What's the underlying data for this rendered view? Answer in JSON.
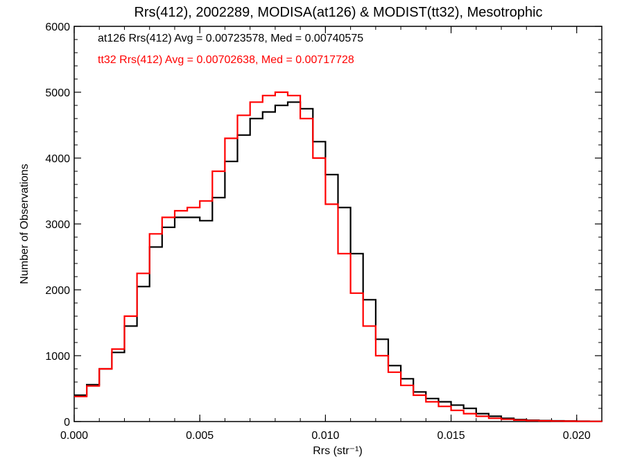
{
  "chart_data": {
    "type": "line",
    "title": "Rrs(412), 2002289, MODISA(at126) & MODIST(tt32), Mesotrophic",
    "xlabel": "Rrs (str⁻¹)",
    "ylabel": "Number of Observations",
    "xlim": [
      0.0,
      0.021
    ],
    "ylim": [
      0,
      6000
    ],
    "x_ticks": [
      0.0,
      0.005,
      0.01,
      0.015,
      0.02
    ],
    "x_tick_labels": [
      "0.000",
      "0.005",
      "0.010",
      "0.015",
      "0.020"
    ],
    "y_ticks": [
      0,
      1000,
      2000,
      3000,
      4000,
      5000,
      6000
    ],
    "y_tick_labels": [
      "0",
      "1000",
      "2000",
      "3000",
      "4000",
      "5000",
      "6000"
    ],
    "grid": false,
    "legend_position": "top-left",
    "series": [
      {
        "name": "at126 Rrs(412) Avg = 0.00723578, Med = 0.00740575",
        "color": "#000000",
        "points": [
          [
            0.0,
            400
          ],
          [
            0.0005,
            560
          ],
          [
            0.001,
            800
          ],
          [
            0.0015,
            1050
          ],
          [
            0.002,
            1450
          ],
          [
            0.0025,
            2050
          ],
          [
            0.003,
            2650
          ],
          [
            0.0035,
            2950
          ],
          [
            0.004,
            3100
          ],
          [
            0.0045,
            3100
          ],
          [
            0.005,
            3050
          ],
          [
            0.0055,
            3400
          ],
          [
            0.006,
            3950
          ],
          [
            0.0065,
            4350
          ],
          [
            0.007,
            4600
          ],
          [
            0.0075,
            4700
          ],
          [
            0.008,
            4800
          ],
          [
            0.0085,
            4850
          ],
          [
            0.009,
            4750
          ],
          [
            0.0095,
            4250
          ],
          [
            0.01,
            3750
          ],
          [
            0.0105,
            3250
          ],
          [
            0.011,
            2550
          ],
          [
            0.0115,
            1850
          ],
          [
            0.012,
            1250
          ],
          [
            0.0125,
            850
          ],
          [
            0.013,
            650
          ],
          [
            0.0135,
            450
          ],
          [
            0.014,
            350
          ],
          [
            0.0145,
            300
          ],
          [
            0.015,
            250
          ],
          [
            0.0155,
            200
          ],
          [
            0.016,
            120
          ],
          [
            0.0165,
            80
          ],
          [
            0.017,
            50
          ],
          [
            0.0175,
            30
          ],
          [
            0.018,
            20
          ],
          [
            0.0185,
            15
          ],
          [
            0.019,
            10
          ],
          [
            0.0195,
            8
          ],
          [
            0.02,
            5
          ],
          [
            0.0205,
            3
          ],
          [
            0.021,
            2
          ]
        ]
      },
      {
        "name": "tt32 Rrs(412) Avg = 0.00702638, Med = 0.00717728",
        "color": "#ff0000",
        "points": [
          [
            0.0,
            380
          ],
          [
            0.0005,
            540
          ],
          [
            0.001,
            800
          ],
          [
            0.0015,
            1100
          ],
          [
            0.002,
            1600
          ],
          [
            0.0025,
            2250
          ],
          [
            0.003,
            2850
          ],
          [
            0.0035,
            3100
          ],
          [
            0.004,
            3200
          ],
          [
            0.0045,
            3250
          ],
          [
            0.005,
            3350
          ],
          [
            0.0055,
            3800
          ],
          [
            0.006,
            4300
          ],
          [
            0.0065,
            4650
          ],
          [
            0.007,
            4850
          ],
          [
            0.0075,
            4950
          ],
          [
            0.008,
            5000
          ],
          [
            0.0085,
            4950
          ],
          [
            0.009,
            4600
          ],
          [
            0.0095,
            4000
          ],
          [
            0.01,
            3300
          ],
          [
            0.0105,
            2550
          ],
          [
            0.011,
            1950
          ],
          [
            0.0115,
            1450
          ],
          [
            0.012,
            1000
          ],
          [
            0.0125,
            750
          ],
          [
            0.013,
            550
          ],
          [
            0.0135,
            400
          ],
          [
            0.014,
            300
          ],
          [
            0.0145,
            230
          ],
          [
            0.015,
            170
          ],
          [
            0.0155,
            120
          ],
          [
            0.016,
            80
          ],
          [
            0.0165,
            50
          ],
          [
            0.017,
            35
          ],
          [
            0.0175,
            22
          ],
          [
            0.018,
            15
          ],
          [
            0.0185,
            10
          ],
          [
            0.019,
            7
          ],
          [
            0.0195,
            5
          ],
          [
            0.02,
            3
          ],
          [
            0.0205,
            2
          ],
          [
            0.021,
            1
          ]
        ]
      }
    ]
  }
}
